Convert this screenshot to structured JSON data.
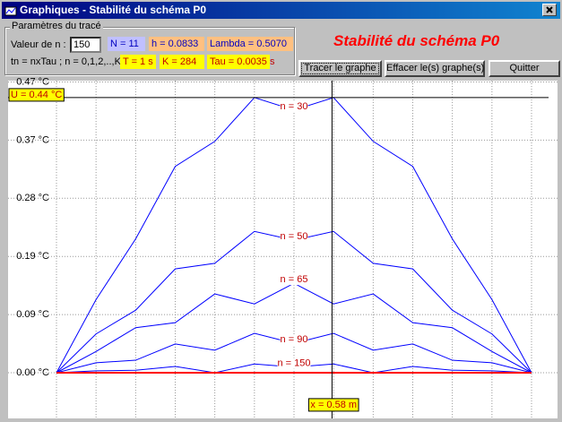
{
  "window": {
    "title": "Graphiques - Stabilité du schéma P0"
  },
  "params": {
    "group_title": "Paramètres du tracé",
    "n_label": "Valeur de n :",
    "n_value": "150",
    "N": "N = 11",
    "h": "h = 0.0833",
    "lambda": "Lambda = 0.5070",
    "tn": "tn = nxTau ; n = 0,1,2,..,K",
    "T": "T = 1 s",
    "K": "K = 284",
    "tau": "Tau = 0.0035 s"
  },
  "heading": "Stabilité du schéma P0",
  "buttons": [
    "Tracer le graphe",
    "Effacer le(s) graphe(s)",
    "Quitter"
  ],
  "chart_data": {
    "type": "line",
    "x": [
      0,
      0.0833,
      0.1667,
      0.25,
      0.3333,
      0.4167,
      0.5,
      0.5833,
      0.6667,
      0.75,
      0.8333,
      0.9167,
      1
    ],
    "xlim": [
      0,
      1
    ],
    "ylim": [
      0,
      0.47
    ],
    "yticks": [
      {
        "value": 0,
        "label": "0.00 °C"
      },
      {
        "value": 0.093,
        "label": "0.09 °C"
      },
      {
        "value": 0.186,
        "label": "0.19 °C"
      },
      {
        "value": 0.279,
        "label": "0.28 °C"
      },
      {
        "value": 0.372,
        "label": "0.37 °C"
      },
      {
        "value": 0.465,
        "label": "0.47 °C"
      }
    ],
    "grid": true,
    "series": [
      {
        "name": "n = 30",
        "color": "#0000ff",
        "values": [
          0,
          0.117,
          0.214,
          0.33,
          0.37,
          0.44,
          0.42,
          0.44,
          0.37,
          0.33,
          0.214,
          0.117,
          0
        ]
      },
      {
        "name": "n = 50",
        "color": "#0000ff",
        "values": [
          0,
          0.062,
          0.1,
          0.166,
          0.175,
          0.226,
          0.212,
          0.226,
          0.175,
          0.166,
          0.1,
          0.062,
          0
        ]
      },
      {
        "name": "n = 65",
        "color": "#0000ff",
        "values": [
          0,
          0.034,
          0.072,
          0.08,
          0.126,
          0.11,
          0.143,
          0.11,
          0.126,
          0.08,
          0.072,
          0.034,
          0
        ]
      },
      {
        "name": "n = 90",
        "color": "#0000ff",
        "values": [
          0,
          0.016,
          0.02,
          0.046,
          0.036,
          0.063,
          0.047,
          0.063,
          0.036,
          0.046,
          0.02,
          0.016,
          0
        ]
      },
      {
        "name": "n = 150",
        "color": "#0000ff",
        "values": [
          0,
          0.003,
          0.004,
          0.01,
          0,
          0.014,
          0.009,
          0.014,
          0,
          0.01,
          0.004,
          0.003,
          0
        ]
      },
      {
        "color": "#ff0000",
        "values": [
          0,
          0,
          0,
          0,
          0,
          0,
          0,
          0,
          0,
          0,
          0,
          0,
          0
        ]
      }
    ],
    "cursor": {
      "x": 0.58,
      "y": 0.44,
      "x_label": "x = 0.58 m",
      "y_label": "U = 0.44 °C"
    }
  }
}
